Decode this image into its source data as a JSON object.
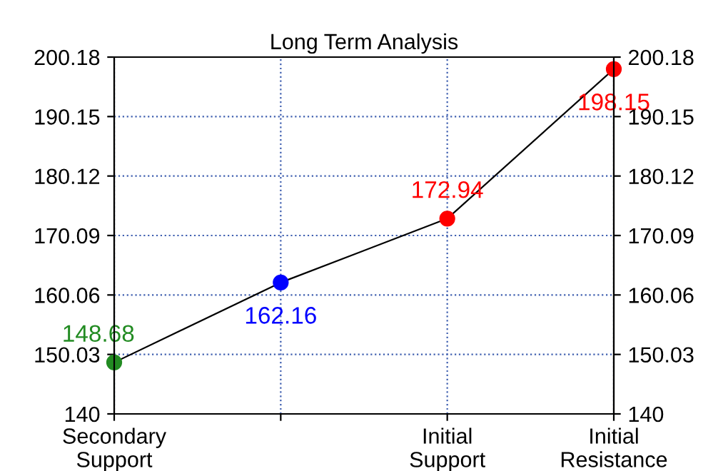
{
  "chart_data": {
    "type": "line",
    "title": "Long Term Analysis",
    "categories": [
      "Secondary\nSupport",
      null,
      "Initial\nSupport",
      "Initial\nResistance"
    ],
    "series": [
      {
        "color": "#000000",
        "colors": [
          "#228b22",
          "#0000ff",
          "#ff0000",
          "#ff0000"
        ],
        "values": [
          148.68,
          162.16,
          172.94,
          198.15
        ]
      }
    ],
    "data_labels": true,
    "marker": "circle",
    "line_style": "solid",
    "ylim": [
      140,
      200.18
    ],
    "yticks": [
      140,
      150.03,
      160.06,
      170.09,
      180.12,
      190.15,
      200.18
    ],
    "y2lim": [
      140,
      200.18
    ],
    "y2ticks": [
      140,
      150.03,
      160.06,
      170.09,
      180.12,
      190.15,
      200.18
    ],
    "grid": true
  }
}
